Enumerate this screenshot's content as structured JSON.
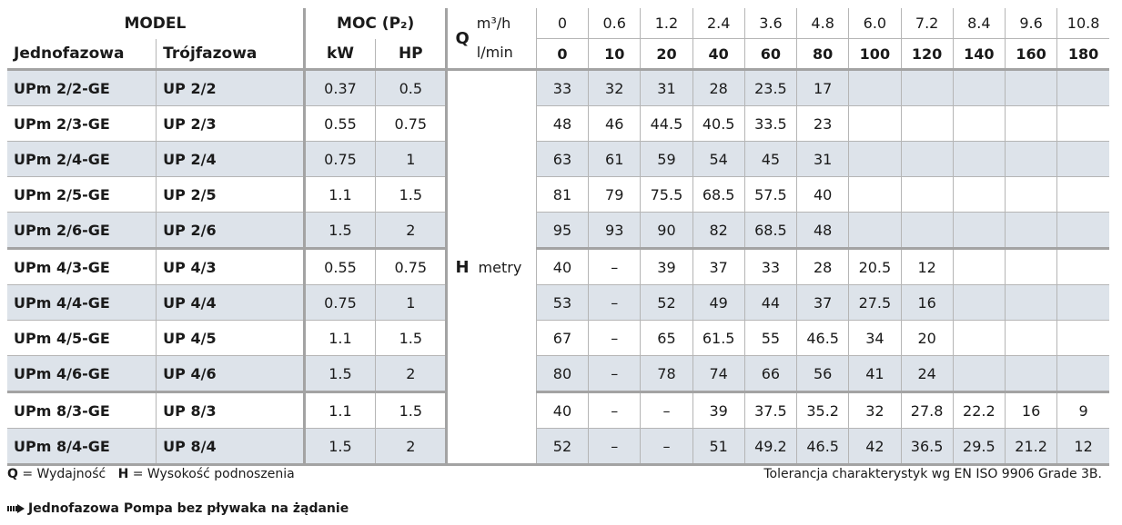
{
  "header": {
    "model": "MODEL",
    "moc": "MOC (P₂)",
    "single_phase": "Jednofazowa",
    "three_phase": "Trójfazowa",
    "kw": "kW",
    "hp": "HP",
    "q_label": "Q",
    "q_unit1": "m³/h",
    "q_unit2": "l/min",
    "h_label": "H",
    "h_unit": "metry"
  },
  "flow_m3h": [
    "0",
    "0.6",
    "1.2",
    "2.4",
    "3.6",
    "4.8",
    "6.0",
    "7.2",
    "8.4",
    "9.6",
    "10.8"
  ],
  "flow_lmin": [
    "0",
    "10",
    "20",
    "40",
    "60",
    "80",
    "100",
    "120",
    "140",
    "160",
    "180"
  ],
  "rows": [
    {
      "single": "UPm 2/2-GE",
      "three": "UP 2/2",
      "kw": "0.37",
      "hp": "0.5",
      "h": [
        "33",
        "32",
        "31",
        "28",
        "23.5",
        "17",
        "",
        "",
        "",
        "",
        ""
      ]
    },
    {
      "single": "UPm 2/3-GE",
      "three": "UP 2/3",
      "kw": "0.55",
      "hp": "0.75",
      "h": [
        "48",
        "46",
        "44.5",
        "40.5",
        "33.5",
        "23",
        "",
        "",
        "",
        "",
        ""
      ]
    },
    {
      "single": "UPm 2/4-GE",
      "three": "UP 2/4",
      "kw": "0.75",
      "hp": "1",
      "h": [
        "63",
        "61",
        "59",
        "54",
        "45",
        "31",
        "",
        "",
        "",
        "",
        ""
      ]
    },
    {
      "single": "UPm 2/5-GE",
      "three": "UP 2/5",
      "kw": "1.1",
      "hp": "1.5",
      "h": [
        "81",
        "79",
        "75.5",
        "68.5",
        "57.5",
        "40",
        "",
        "",
        "",
        "",
        ""
      ]
    },
    {
      "single": "UPm 2/6-GE",
      "three": "UP 2/6",
      "kw": "1.5",
      "hp": "2",
      "h": [
        "95",
        "93",
        "90",
        "82",
        "68.5",
        "48",
        "",
        "",
        "",
        "",
        ""
      ]
    },
    {
      "single": "UPm 4/3-GE",
      "three": "UP 4/3",
      "kw": "0.55",
      "hp": "0.75",
      "h": [
        "40",
        "–",
        "39",
        "37",
        "33",
        "28",
        "20.5",
        "12",
        "",
        "",
        ""
      ]
    },
    {
      "single": "UPm 4/4-GE",
      "three": "UP 4/4",
      "kw": "0.75",
      "hp": "1",
      "h": [
        "53",
        "–",
        "52",
        "49",
        "44",
        "37",
        "27.5",
        "16",
        "",
        "",
        ""
      ]
    },
    {
      "single": "UPm 4/5-GE",
      "three": "UP 4/5",
      "kw": "1.1",
      "hp": "1.5",
      "h": [
        "67",
        "–",
        "65",
        "61.5",
        "55",
        "46.5",
        "34",
        "20",
        "",
        "",
        ""
      ]
    },
    {
      "single": "UPm 4/6-GE",
      "three": "UP 4/6",
      "kw": "1.5",
      "hp": "2",
      "h": [
        "80",
        "–",
        "78",
        "74",
        "66",
        "56",
        "41",
        "24",
        "",
        "",
        ""
      ]
    },
    {
      "single": "UPm 8/3-GE",
      "three": "UP 8/3",
      "kw": "1.1",
      "hp": "1.5",
      "h": [
        "40",
        "–",
        "–",
        "39",
        "37.5",
        "35.2",
        "32",
        "27.8",
        "22.2",
        "16",
        "9"
      ]
    },
    {
      "single": "UPm 8/4-GE",
      "three": "UP 8/4",
      "kw": "1.5",
      "hp": "2",
      "h": [
        "52",
        "–",
        "–",
        "51",
        "49.2",
        "46.5",
        "42",
        "36.5",
        "29.5",
        "21.2",
        "12"
      ]
    }
  ],
  "footer": {
    "q_key": "Q",
    "q_def": " = Wydajność",
    "h_key": "H",
    "h_def": " = Wysokość podnoszenia",
    "tolerance": "Tolerancja charakterystyk wg EN ISO 9906 Grade 3B.",
    "note": "Jednofazowa Pompa bez pływaka na żądanie",
    "arrow_icon": "arrow-right-icon"
  }
}
